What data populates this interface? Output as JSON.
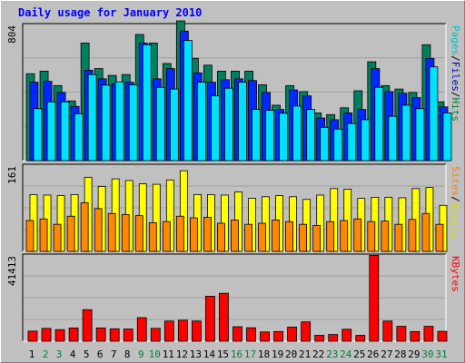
{
  "chart_data": [
    {
      "type": "bar",
      "title": "Daily usage for January 2010",
      "categories": [
        "1",
        "2",
        "3",
        "4",
        "5",
        "6",
        "7",
        "8",
        "9",
        "10",
        "11",
        "12",
        "13",
        "14",
        "15",
        "16",
        "17",
        "18",
        "19",
        "20",
        "21",
        "22",
        "23",
        "24",
        "25",
        "26",
        "27",
        "28",
        "29",
        "30",
        "31"
      ],
      "weekend_days": [
        "2",
        "3",
        "9",
        "10",
        "16",
        "17",
        "23",
        "24",
        "30",
        "31"
      ],
      "ytick": "804",
      "ylim": [
        0,
        804
      ],
      "legend": [
        "Pages",
        "/",
        "Files",
        "/",
        "Hits"
      ],
      "legend_colors": [
        "#00c0c0",
        "#000000",
        "#0000c0",
        "#000000",
        "#008040"
      ],
      "series": [
        {
          "name": "Hits",
          "color": "#00805f",
          "values": [
            510,
            525,
            440,
            350,
            690,
            540,
            500,
            505,
            740,
            690,
            570,
            820,
            600,
            560,
            525,
            525,
            525,
            445,
            325,
            440,
            405,
            280,
            270,
            310,
            410,
            580,
            440,
            420,
            400,
            680,
            345
          ]
        },
        {
          "name": "Files",
          "color": "#0028ff",
          "values": [
            460,
            465,
            400,
            318,
            530,
            480,
            450,
            460,
            690,
            480,
            540,
            760,
            515,
            460,
            475,
            480,
            470,
            400,
            300,
            415,
            380,
            250,
            240,
            280,
            300,
            540,
            405,
            395,
            370,
            600,
            315
          ]
        },
        {
          "name": "Pages",
          "color": "#00e0ff",
          "values": [
            305,
            345,
            345,
            275,
            505,
            443,
            462,
            445,
            680,
            430,
            420,
            705,
            460,
            380,
            425,
            460,
            300,
            295,
            278,
            320,
            300,
            195,
            185,
            218,
            240,
            430,
            260,
            325,
            305,
            550,
            280
          ]
        }
      ]
    },
    {
      "type": "bar",
      "ytick": "161",
      "ylim": [
        0,
        161
      ],
      "legend": [
        "Sites",
        "/",
        "Visits"
      ],
      "legend_colors": [
        "#ff8000",
        "#000000",
        "#e0e000"
      ],
      "series": [
        {
          "name": "Visits",
          "color": "#ffff00",
          "values": [
            105,
            104,
            103,
            105,
            137,
            120,
            134,
            131,
            125,
            124,
            132,
            149,
            105,
            105,
            104,
            110,
            98,
            101,
            103,
            101,
            96,
            104,
            116,
            115,
            98,
            100,
            100,
            99,
            116,
            118,
            85
          ]
        },
        {
          "name": "Sites",
          "color": "#ff8800",
          "values": [
            57,
            60,
            50,
            65,
            90,
            79,
            70,
            68,
            66,
            53,
            55,
            65,
            62,
            63,
            52,
            58,
            50,
            52,
            58,
            55,
            50,
            48,
            55,
            57,
            60,
            55,
            56,
            50,
            59,
            70,
            50
          ]
        }
      ]
    },
    {
      "type": "bar",
      "ytick": "41413",
      "ylim": [
        0,
        41413
      ],
      "legend": [
        "KBytes"
      ],
      "legend_colors": [
        "#ff0000"
      ],
      "series": [
        {
          "name": "KBytes",
          "color": "#ff0000",
          "values": [
            4800,
            6100,
            5500,
            6300,
            15000,
            6300,
            5900,
            5800,
            11200,
            6100,
            9600,
            10000,
            9600,
            21400,
            22800,
            6900,
            6400,
            4400,
            4600,
            6700,
            9200,
            2800,
            3200,
            5700,
            2800,
            40800,
            9600,
            7100,
            4600,
            7100,
            4700
          ]
        }
      ]
    }
  ]
}
